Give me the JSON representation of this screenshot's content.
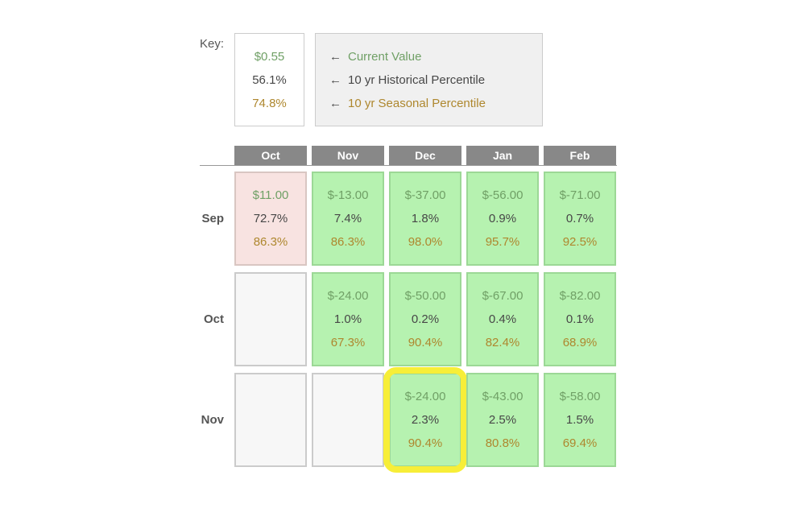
{
  "key": {
    "label": "Key:",
    "sample": {
      "value": "$0.55",
      "historical": "56.1%",
      "seasonal": "74.8%"
    },
    "legend": [
      {
        "arrow": "←",
        "label": "Current Value"
      },
      {
        "arrow": "←",
        "label": "10 yr Historical Percentile"
      },
      {
        "arrow": "←",
        "label": "10 yr Seasonal Percentile"
      }
    ]
  },
  "matrix": {
    "column_headers": [
      "Oct",
      "Nov",
      "Dec",
      "Jan",
      "Feb"
    ],
    "rows": [
      {
        "label": "Sep",
        "cells": [
          {
            "type": "pink",
            "value": "$11.00",
            "historical": "72.7%",
            "seasonal": "86.3%"
          },
          {
            "type": "green",
            "value": "$-13.00",
            "historical": "7.4%",
            "seasonal": "86.3%"
          },
          {
            "type": "green",
            "value": "$-37.00",
            "historical": "1.8%",
            "seasonal": "98.0%"
          },
          {
            "type": "green",
            "value": "$-56.00",
            "historical": "0.9%",
            "seasonal": "95.7%"
          },
          {
            "type": "green",
            "value": "$-71.00",
            "historical": "0.7%",
            "seasonal": "92.5%"
          }
        ]
      },
      {
        "label": "Oct",
        "cells": [
          {
            "type": "empty"
          },
          {
            "type": "green",
            "value": "$-24.00",
            "historical": "1.0%",
            "seasonal": "67.3%"
          },
          {
            "type": "green",
            "value": "$-50.00",
            "historical": "0.2%",
            "seasonal": "90.4%"
          },
          {
            "type": "green",
            "value": "$-67.00",
            "historical": "0.4%",
            "seasonal": "82.4%"
          },
          {
            "type": "green",
            "value": "$-82.00",
            "historical": "0.1%",
            "seasonal": "68.9%"
          }
        ]
      },
      {
        "label": "Nov",
        "cells": [
          {
            "type": "empty"
          },
          {
            "type": "empty"
          },
          {
            "type": "green",
            "highlighted": true,
            "value": "$-24.00",
            "historical": "2.3%",
            "seasonal": "90.4%"
          },
          {
            "type": "green",
            "value": "$-43.00",
            "historical": "2.5%",
            "seasonal": "80.8%"
          },
          {
            "type": "green",
            "value": "$-58.00",
            "historical": "1.5%",
            "seasonal": "69.4%"
          }
        ]
      }
    ]
  },
  "colors": {
    "current_value_text": "#70a066",
    "historical_text": "#474747",
    "seasonal_text": "#ae872e",
    "cell_green_bg": "#b6f2b0",
    "cell_green_border": "#9cd896",
    "cell_pink_bg": "#f8e3e1",
    "cell_pink_border": "#d9c6c2",
    "cell_empty_bg": "#f7f7f7",
    "cell_empty_border": "#cbcbcb",
    "header_bg": "#888888",
    "header_text": "#ffffff",
    "highlight_border": "#f7ee38",
    "key_box_bg": "#ffffff",
    "legend_box_bg": "#f0f0f0",
    "box_border": "#cccccc",
    "label_text": "#555555",
    "rule_color": "#999999"
  }
}
